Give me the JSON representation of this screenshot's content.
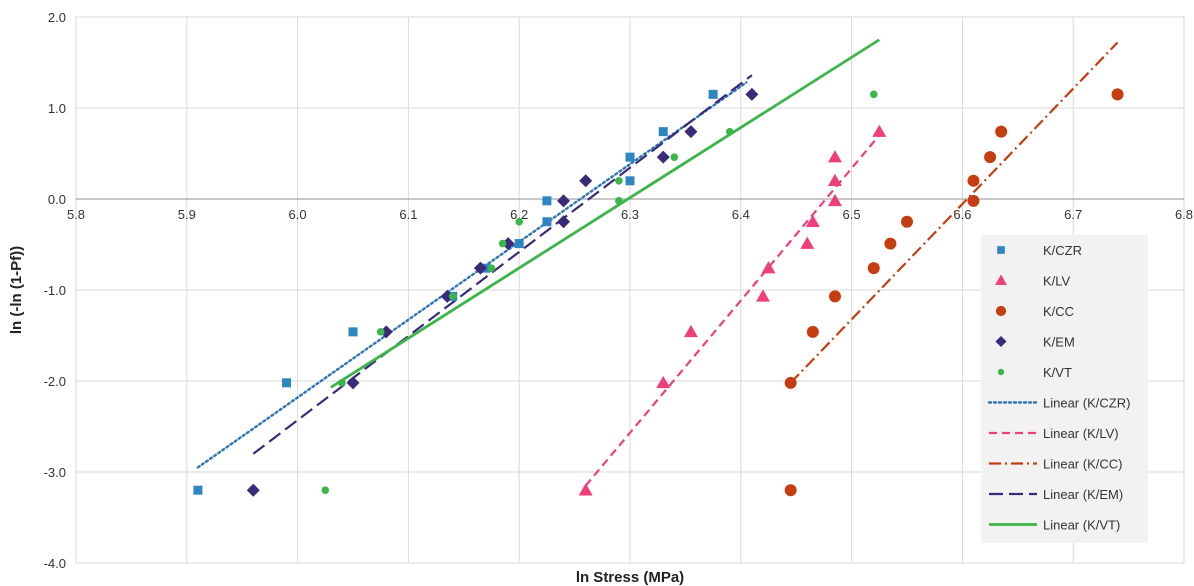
{
  "chart_data": {
    "type": "scatter",
    "title": "",
    "xlabel": "ln Stress (MPa)",
    "ylabel": "ln (-ln (1-Pf))",
    "xlim": [
      5.8,
      6.8
    ],
    "ylim": [
      -4.0,
      2.0
    ],
    "x_ticks": [
      "5.8",
      "5.9",
      "6.0",
      "6.1",
      "6.2",
      "6.3",
      "6.4",
      "6.5",
      "6.6",
      "6.7",
      "6.8"
    ],
    "y_ticks": [
      "2.0",
      "1.0",
      "0.0",
      "-1.0",
      "-2.0",
      "-3.0",
      "-4.0"
    ],
    "grid": true,
    "legend_position": "right",
    "series": [
      {
        "name": "K/CZR",
        "marker": "square",
        "color": "#2e86c1",
        "points": [
          [
            5.91,
            -3.2
          ],
          [
            5.99,
            -2.02
          ],
          [
            6.05,
            -1.46
          ],
          [
            6.14,
            -1.07
          ],
          [
            6.17,
            -0.76
          ],
          [
            6.2,
            -0.49
          ],
          [
            6.225,
            -0.25
          ],
          [
            6.225,
            -0.02
          ],
          [
            6.3,
            0.2
          ],
          [
            6.3,
            0.46
          ],
          [
            6.33,
            0.74
          ],
          [
            6.375,
            1.15
          ]
        ]
      },
      {
        "name": "K/LV",
        "marker": "triangle",
        "color": "#ef3f7a",
        "points": [
          [
            6.26,
            -3.2
          ],
          [
            6.33,
            -2.02
          ],
          [
            6.355,
            -1.46
          ],
          [
            6.42,
            -1.07
          ],
          [
            6.425,
            -0.76
          ],
          [
            6.46,
            -0.49
          ],
          [
            6.465,
            -0.25
          ],
          [
            6.485,
            -0.02
          ],
          [
            6.485,
            0.2
          ],
          [
            6.485,
            0.46
          ],
          [
            6.525,
            0.74
          ]
        ]
      },
      {
        "name": "K/CC",
        "marker": "circle",
        "color": "#c43e12",
        "points": [
          [
            6.445,
            -3.2
          ],
          [
            6.445,
            -2.02
          ],
          [
            6.465,
            -1.46
          ],
          [
            6.485,
            -1.07
          ],
          [
            6.52,
            -0.76
          ],
          [
            6.535,
            -0.49
          ],
          [
            6.55,
            -0.25
          ],
          [
            6.61,
            -0.02
          ],
          [
            6.61,
            0.2
          ],
          [
            6.625,
            0.46
          ],
          [
            6.635,
            0.74
          ],
          [
            6.74,
            1.15
          ]
        ]
      },
      {
        "name": "K/EM",
        "marker": "diamond",
        "color": "#3b2a7a",
        "points": [
          [
            5.96,
            -3.2
          ],
          [
            6.05,
            -2.02
          ],
          [
            6.08,
            -1.46
          ],
          [
            6.135,
            -1.07
          ],
          [
            6.165,
            -0.76
          ],
          [
            6.19,
            -0.49
          ],
          [
            6.24,
            -0.25
          ],
          [
            6.24,
            -0.02
          ],
          [
            6.26,
            0.2
          ],
          [
            6.33,
            0.46
          ],
          [
            6.355,
            0.74
          ],
          [
            6.41,
            1.15
          ]
        ]
      },
      {
        "name": "K/VT",
        "marker": "dot",
        "color": "#3cb54a",
        "points": [
          [
            6.025,
            -3.2
          ],
          [
            6.04,
            -2.02
          ],
          [
            6.075,
            -1.46
          ],
          [
            6.14,
            -1.07
          ],
          [
            6.175,
            -0.76
          ],
          [
            6.185,
            -0.49
          ],
          [
            6.2,
            -0.25
          ],
          [
            6.29,
            -0.02
          ],
          [
            6.29,
            0.2
          ],
          [
            6.34,
            0.46
          ],
          [
            6.39,
            0.74
          ],
          [
            6.52,
            1.15
          ]
        ]
      }
    ],
    "trendlines": [
      {
        "name": "Linear (K/CZR)",
        "style": "dotted",
        "color": "#2e75b6",
        "x": [
          5.91,
          6.405
        ],
        "y": [
          -2.95,
          1.28
        ]
      },
      {
        "name": "Linear (K/LV)",
        "style": "dashed",
        "color": "#ef3f7a",
        "x": [
          6.26,
          6.525
        ],
        "y": [
          -3.15,
          0.7
        ]
      },
      {
        "name": "Linear (K/CC)",
        "style": "dashdot",
        "color": "#c43e12",
        "x": [
          6.445,
          6.74
        ],
        "y": [
          -2.02,
          1.72
        ]
      },
      {
        "name": "Linear (K/EM)",
        "style": "longdash",
        "color": "#3b2a7a",
        "x": [
          5.96,
          6.41
        ],
        "y": [
          -2.8,
          1.36
        ]
      },
      {
        "name": "Linear (K/VT)",
        "style": "solid",
        "color": "#3cb54a",
        "x": [
          6.03,
          6.525
        ],
        "y": [
          -2.07,
          1.75
        ]
      }
    ]
  }
}
